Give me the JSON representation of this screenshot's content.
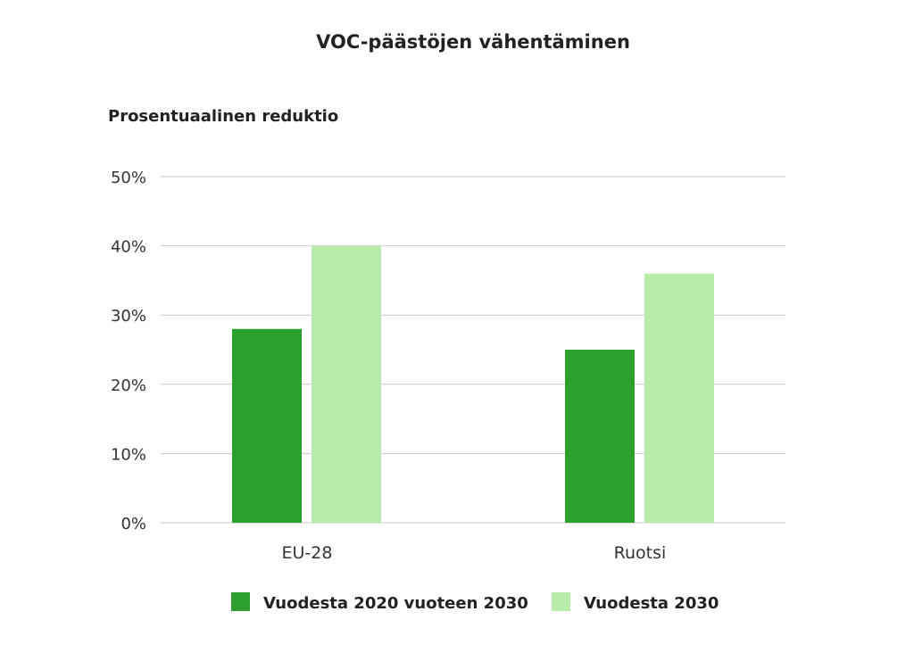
{
  "chart_data": {
    "type": "bar",
    "title": "VOC-päästöjen vähentäminen",
    "ylabel": "Prosentuaalinen reduktio",
    "xlabel": "",
    "categories": [
      "EU-28",
      "Ruotsi"
    ],
    "series": [
      {
        "name": "Vuodesta 2020 vuoteen 2030",
        "values": [
          28,
          25
        ],
        "color": "#2ca02c"
      },
      {
        "name": "Vuodesta 2030",
        "values": [
          40,
          36
        ],
        "color": "#b9ecaa"
      }
    ],
    "ylim": [
      0,
      50
    ],
    "yticks": [
      0,
      10,
      20,
      30,
      40,
      50
    ],
    "ytick_labels": [
      "0%",
      "10%",
      "20%",
      "30%",
      "40%",
      "50%"
    ],
    "grid": true,
    "legend_position": "bottom"
  }
}
